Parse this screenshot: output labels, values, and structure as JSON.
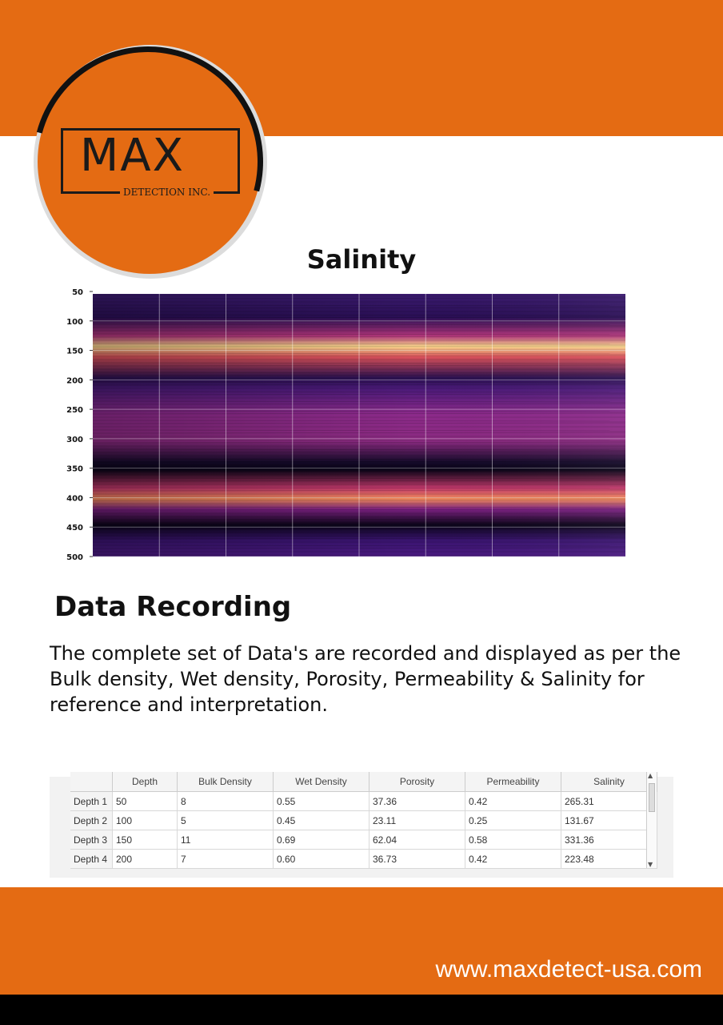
{
  "logo": {
    "brand": "MAX",
    "subtitle": "DETECTION INC."
  },
  "chart_data": {
    "type": "heatmap",
    "title": "Salinity",
    "y_ticks": [
      50,
      100,
      150,
      200,
      250,
      300,
      350,
      400,
      450,
      500
    ],
    "ylim": [
      50,
      500
    ],
    "grid": true
  },
  "section": {
    "title": "Data Recording",
    "body": "The complete set of Data's are recorded and displayed  as per the Bulk density, Wet density, Porosity, Permeability & Salinity for reference and interpretation."
  },
  "table": {
    "columns": [
      "Depth",
      "Bulk Density",
      "Wet Density",
      "Porosity",
      "Permeability",
      "Salinity"
    ],
    "rows": [
      {
        "label": "Depth 1",
        "values": [
          "50",
          "8",
          "0.55",
          "37.36",
          "0.42",
          "265.31"
        ]
      },
      {
        "label": "Depth 2",
        "values": [
          "100",
          "5",
          "0.45",
          "23.11",
          "0.25",
          "131.67"
        ]
      },
      {
        "label": "Depth 3",
        "values": [
          "150",
          "11",
          "0.69",
          "62.04",
          "0.58",
          "331.36"
        ]
      },
      {
        "label": "Depth 4",
        "values": [
          "200",
          "7",
          "0.60",
          "36.73",
          "0.42",
          "223.48"
        ]
      }
    ]
  },
  "footer": {
    "website": "www.maxdetect-usa.com"
  },
  "colors": {
    "accent": "#e46b13",
    "dark": "#111111"
  }
}
